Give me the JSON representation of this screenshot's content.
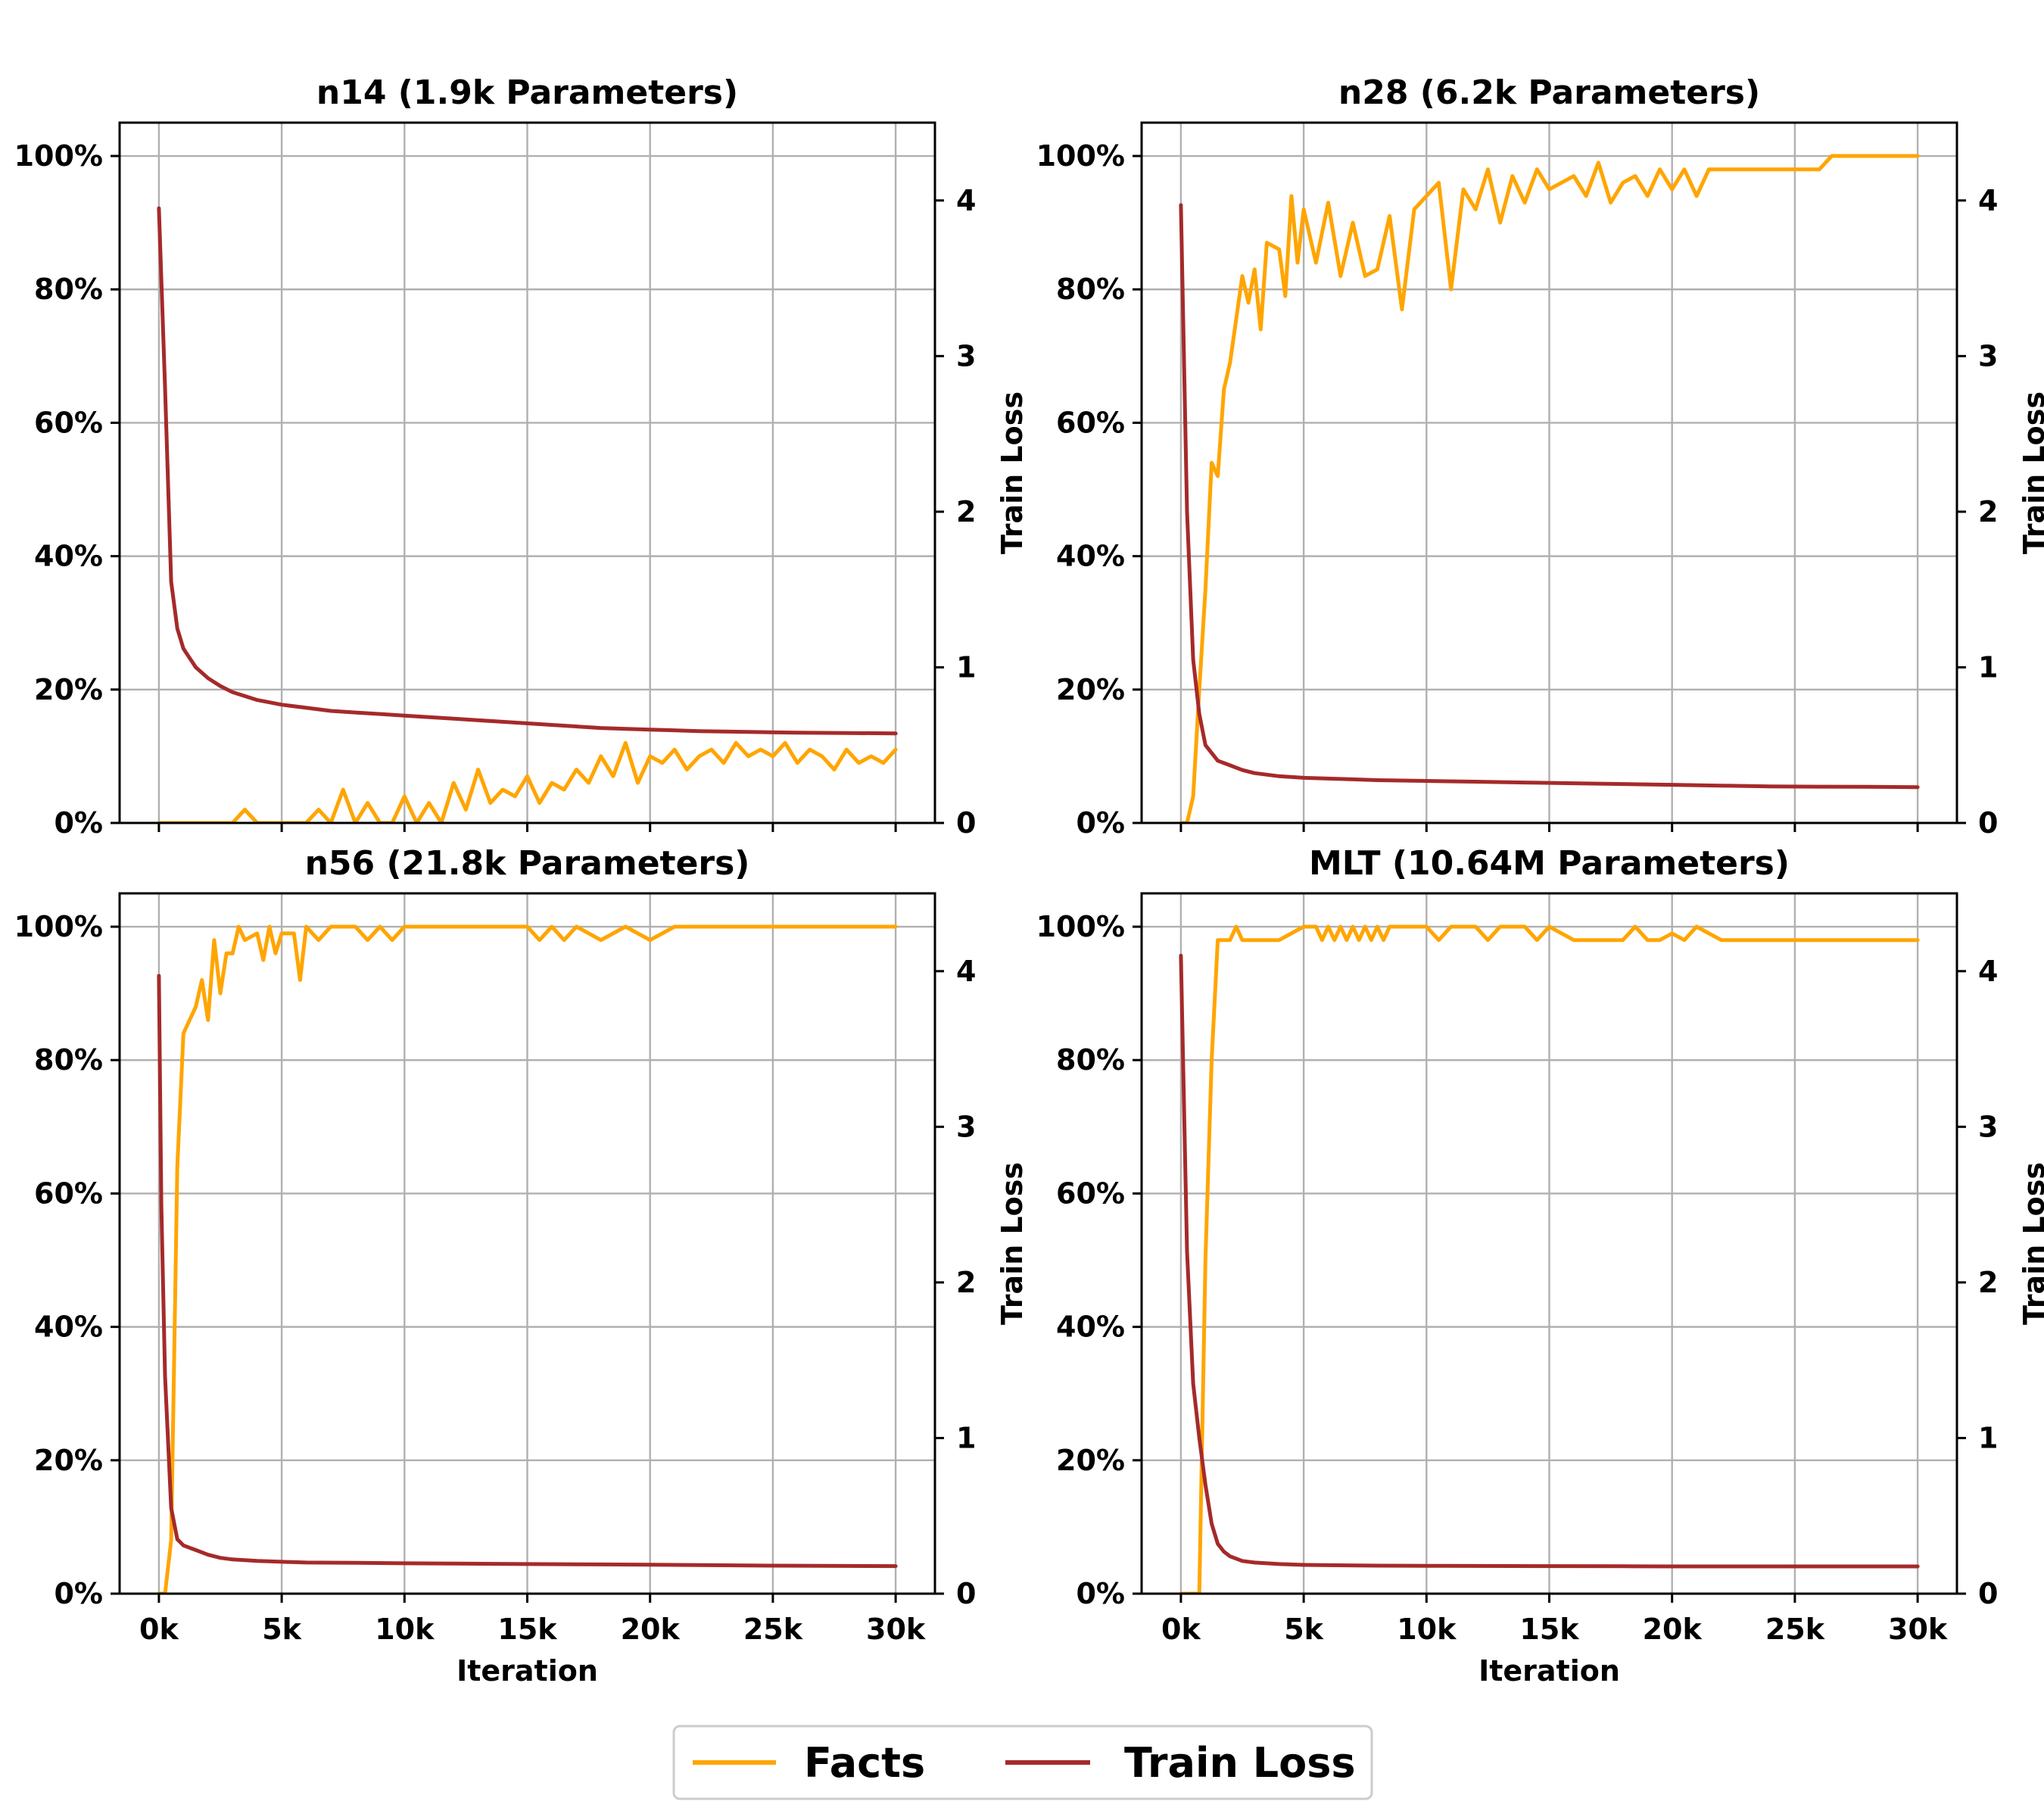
{
  "chart_data": [
    {
      "type": "line",
      "title": "n14 (1.9k Parameters)",
      "xlabel": "",
      "ylabel_left": "",
      "ylabel_right": "Train Loss",
      "xlim": [
        -1.6,
        31.6
      ],
      "ylim_left": [
        0,
        105
      ],
      "ylim_right": [
        0,
        4.5
      ],
      "x_ticks": [
        "0k",
        "5k",
        "10k",
        "15k",
        "20k",
        "25k",
        "30k"
      ],
      "x_ticks_visible": false,
      "left_ticks": [
        "0%",
        "20%",
        "40%",
        "60%",
        "80%",
        "100%"
      ],
      "right_ticks": [
        "0",
        "1",
        "2",
        "3",
        "4"
      ],
      "series": [
        {
          "name": "Facts",
          "axis": "left",
          "x": [
            0,
            1,
            2,
            3,
            3.5,
            4,
            4.5,
            5,
            6,
            6.5,
            7,
            7.5,
            8,
            8.5,
            9,
            9.5,
            10,
            10.5,
            11,
            11.5,
            12,
            12.5,
            13,
            13.5,
            14,
            14.5,
            15,
            15.5,
            16,
            16.5,
            17,
            17.5,
            18,
            18.5,
            19,
            19.5,
            20,
            20.5,
            21,
            21.5,
            22,
            22.5,
            23,
            23.5,
            24,
            24.5,
            25,
            25.5,
            26,
            26.5,
            27,
            27.5,
            28,
            28.5,
            29,
            29.5,
            30
          ],
          "values": [
            0,
            0,
            0,
            0,
            2,
            0,
            0,
            0,
            0,
            2,
            0,
            5,
            0,
            3,
            0,
            0,
            4,
            0,
            3,
            0,
            6,
            2,
            8,
            3,
            5,
            4,
            7,
            3,
            6,
            5,
            8,
            6,
            10,
            7,
            12,
            6,
            10,
            9,
            11,
            8,
            10,
            11,
            9,
            12,
            10,
            11,
            10,
            12,
            9,
            11,
            10,
            8,
            11,
            9,
            10,
            9,
            11
          ]
        },
        {
          "name": "Train Loss",
          "axis": "right",
          "x": [
            0,
            0.25,
            0.5,
            0.75,
            1,
            1.5,
            2,
            2.5,
            3,
            4,
            5,
            6,
            7,
            8,
            9,
            10,
            12,
            14,
            16,
            18,
            20,
            22,
            24,
            26,
            28,
            30
          ],
          "values": [
            3.95,
            2.8,
            1.55,
            1.25,
            1.12,
            1.0,
            0.93,
            0.88,
            0.84,
            0.79,
            0.76,
            0.74,
            0.72,
            0.71,
            0.7,
            0.69,
            0.67,
            0.65,
            0.63,
            0.61,
            0.6,
            0.59,
            0.585,
            0.58,
            0.578,
            0.575
          ]
        }
      ]
    },
    {
      "type": "line",
      "title": "n28 (6.2k Parameters)",
      "xlabel": "",
      "ylabel_left": "",
      "ylabel_right": "Train Loss",
      "xlim": [
        -1.6,
        31.6
      ],
      "ylim_left": [
        0,
        105
      ],
      "ylim_right": [
        0,
        4.5
      ],
      "x_ticks": [
        "0k",
        "5k",
        "10k",
        "15k",
        "20k",
        "25k",
        "30k"
      ],
      "x_ticks_visible": false,
      "left_ticks": [
        "0%",
        "20%",
        "40%",
        "60%",
        "80%",
        "100%"
      ],
      "right_ticks": [
        "0",
        "1",
        "2",
        "3",
        "4"
      ],
      "series": [
        {
          "name": "Facts",
          "axis": "left",
          "x": [
            0,
            0.25,
            0.5,
            0.75,
            1,
            1.25,
            1.5,
            1.75,
            2,
            2.5,
            2.75,
            3,
            3.25,
            3.5,
            4,
            4.25,
            4.5,
            4.75,
            5,
            5.5,
            6,
            6.5,
            7,
            7.5,
            8,
            8.5,
            9,
            9.5,
            10,
            10.5,
            11,
            11.5,
            12,
            12.5,
            13,
            13.5,
            14,
            14.5,
            15,
            15.5,
            16,
            16.5,
            17,
            17.5,
            18,
            18.5,
            19,
            19.5,
            20,
            20.5,
            21,
            21.5,
            22,
            23,
            24,
            25,
            26,
            26.5,
            27,
            28,
            29,
            30
          ],
          "values": [
            0,
            0,
            4,
            20,
            35,
            54,
            52,
            65,
            69,
            82,
            78,
            83,
            74,
            87,
            86,
            79,
            94,
            84,
            92,
            84,
            93,
            82,
            90,
            82,
            83,
            91,
            77,
            92,
            94,
            96,
            80,
            95,
            92,
            98,
            90,
            97,
            93,
            98,
            95,
            96,
            97,
            94,
            99,
            93,
            96,
            97,
            94,
            98,
            95,
            98,
            94,
            98,
            98,
            98,
            98,
            98,
            98,
            100,
            100,
            100,
            100,
            100
          ]
        },
        {
          "name": "Train Loss",
          "axis": "right",
          "x": [
            0,
            0.25,
            0.5,
            0.75,
            1,
            1.5,
            2,
            2.5,
            3,
            4,
            5,
            6,
            7,
            8,
            10,
            12,
            14,
            16,
            18,
            20,
            22,
            24,
            26,
            28,
            30
          ],
          "values": [
            3.97,
            2.0,
            1.05,
            0.7,
            0.5,
            0.4,
            0.37,
            0.34,
            0.32,
            0.3,
            0.29,
            0.285,
            0.28,
            0.275,
            0.27,
            0.265,
            0.26,
            0.255,
            0.25,
            0.245,
            0.24,
            0.235,
            0.233,
            0.232,
            0.23
          ]
        }
      ]
    },
    {
      "type": "line",
      "title": "n56 (21.8k Parameters)",
      "xlabel": "Iteration",
      "ylabel_left": "",
      "ylabel_right": "Train Loss",
      "xlim": [
        -1.6,
        31.6
      ],
      "ylim_left": [
        0,
        105
      ],
      "ylim_right": [
        0,
        4.5
      ],
      "x_ticks": [
        "0k",
        "5k",
        "10k",
        "15k",
        "20k",
        "25k",
        "30k"
      ],
      "x_ticks_visible": true,
      "left_ticks": [
        "0%",
        "20%",
        "40%",
        "60%",
        "80%",
        "100%"
      ],
      "right_ticks": [
        "0",
        "1",
        "2",
        "3",
        "4"
      ],
      "series": [
        {
          "name": "Facts",
          "axis": "left",
          "x": [
            0,
            0.25,
            0.5,
            0.75,
            1,
            1.5,
            1.75,
            2,
            2.25,
            2.5,
            2.75,
            3,
            3.25,
            3.5,
            4,
            4.25,
            4.5,
            4.75,
            5,
            5.5,
            5.75,
            6,
            6.5,
            7,
            7.5,
            8,
            8.5,
            9,
            9.5,
            10,
            11,
            12,
            13,
            14,
            15,
            15.5,
            16,
            16.5,
            17,
            18,
            19,
            20,
            21,
            22,
            23,
            24,
            26,
            28,
            30
          ],
          "values": [
            0,
            0,
            8,
            64,
            84,
            88,
            92,
            86,
            98,
            90,
            96,
            96,
            100,
            98,
            99,
            95,
            100,
            96,
            99,
            99,
            92,
            100,
            98,
            100,
            100,
            100,
            98,
            100,
            98,
            100,
            100,
            100,
            100,
            100,
            100,
            98,
            100,
            98,
            100,
            98,
            100,
            98,
            100,
            100,
            100,
            100,
            100,
            100,
            100
          ]
        },
        {
          "name": "Train Loss",
          "axis": "right",
          "x": [
            0,
            0.1,
            0.25,
            0.5,
            0.75,
            1,
            1.5,
            2,
            2.5,
            3,
            4,
            5,
            6,
            8,
            10,
            12,
            15,
            18,
            20,
            22,
            25,
            28,
            30
          ],
          "values": [
            3.97,
            2.5,
            1.4,
            0.55,
            0.35,
            0.31,
            0.28,
            0.25,
            0.23,
            0.22,
            0.21,
            0.205,
            0.2,
            0.198,
            0.195,
            0.193,
            0.19,
            0.188,
            0.186,
            0.184,
            0.18,
            0.178,
            0.177
          ]
        }
      ]
    },
    {
      "type": "line",
      "title": "MLT (10.64M Parameters)",
      "xlabel": "Iteration",
      "ylabel_left": "",
      "ylabel_right": "Train Loss",
      "xlim": [
        -1.6,
        31.6
      ],
      "ylim_left": [
        0,
        105
      ],
      "ylim_right": [
        0,
        4.5
      ],
      "x_ticks": [
        "0k",
        "5k",
        "10k",
        "15k",
        "20k",
        "25k",
        "30k"
      ],
      "x_ticks_visible": true,
      "left_ticks": [
        "0%",
        "20%",
        "40%",
        "60%",
        "80%",
        "100%"
      ],
      "right_ticks": [
        "0",
        "1",
        "2",
        "3",
        "4"
      ],
      "series": [
        {
          "name": "Facts",
          "axis": "left",
          "x": [
            0,
            0.5,
            0.75,
            1,
            1.25,
            1.5,
            2,
            2.25,
            2.5,
            3,
            4,
            5,
            5.5,
            5.75,
            6,
            6.25,
            6.5,
            6.75,
            7,
            7.25,
            7.5,
            7.75,
            8,
            8.25,
            8.5,
            9,
            10,
            10.5,
            11,
            12,
            12.5,
            13,
            14,
            14.5,
            15,
            16,
            17,
            18,
            18.5,
            19,
            19.5,
            20,
            20.5,
            21,
            22,
            24,
            26,
            28,
            30
          ],
          "values": [
            0,
            0,
            0,
            50,
            80,
            98,
            98,
            100,
            98,
            98,
            98,
            100,
            100,
            98,
            100,
            98,
            100,
            98,
            100,
            98,
            100,
            98,
            100,
            98,
            100,
            100,
            100,
            98,
            100,
            100,
            98,
            100,
            100,
            98,
            100,
            98,
            98,
            98,
            100,
            98,
            98,
            99,
            98,
            100,
            98,
            98,
            98,
            98,
            98
          ]
        },
        {
          "name": "Train Loss",
          "axis": "right",
          "x": [
            0,
            0.25,
            0.5,
            0.75,
            1,
            1.25,
            1.5,
            1.75,
            2,
            2.5,
            3,
            4,
            5,
            6,
            8,
            10,
            12,
            15,
            18,
            20,
            25,
            30
          ],
          "values": [
            4.1,
            2.2,
            1.35,
            1.0,
            0.7,
            0.45,
            0.32,
            0.27,
            0.24,
            0.21,
            0.2,
            0.19,
            0.185,
            0.183,
            0.18,
            0.179,
            0.178,
            0.177,
            0.176,
            0.175,
            0.175,
            0.175
          ]
        }
      ]
    }
  ],
  "legend": {
    "items": [
      {
        "label": "Facts",
        "color": "#FFA500"
      },
      {
        "label": "Train Loss",
        "color": "#A52A2A"
      }
    ],
    "location": "bottom-center"
  },
  "colors": {
    "facts": "#FFA500",
    "train_loss": "#A52A2A",
    "grid": "#b0b0b0"
  }
}
